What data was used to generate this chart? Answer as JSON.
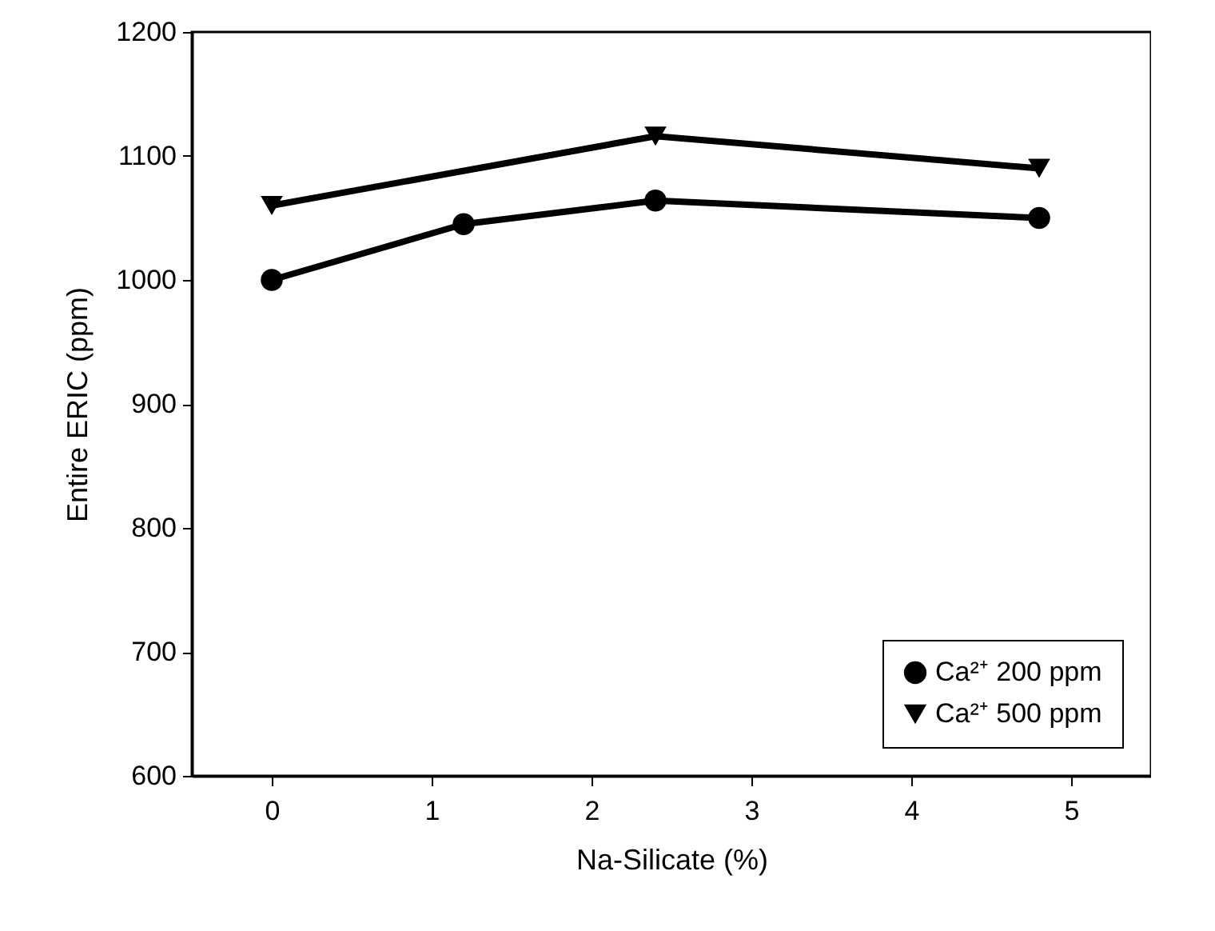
{
  "chart_data": {
    "type": "line",
    "xlabel": "Na-Silicate (%)",
    "ylabel": "Entire ERIC (ppm)",
    "xlim": [
      -0.5,
      5.5
    ],
    "xticks": [
      0,
      1,
      2,
      3,
      4,
      5
    ],
    "ylim": [
      600,
      1200
    ],
    "yticks": [
      600,
      700,
      800,
      900,
      1000,
      1100,
      1200
    ],
    "grid": false,
    "legend": "bottom right",
    "line_style": "solid",
    "series": [
      {
        "name": "Ca²⁺ 200 ppm",
        "color": "#000000",
        "marker": "circle",
        "x": [
          0,
          1.2,
          2.4,
          4.8
        ],
        "values": [
          1000,
          1045,
          1064,
          1050
        ]
      },
      {
        "name": "Ca²⁺ 500 ppm",
        "color": "#000000",
        "marker": "triangle",
        "x": [
          0,
          2.4,
          4.8
        ],
        "values": [
          1060,
          1116,
          1090
        ]
      }
    ]
  }
}
